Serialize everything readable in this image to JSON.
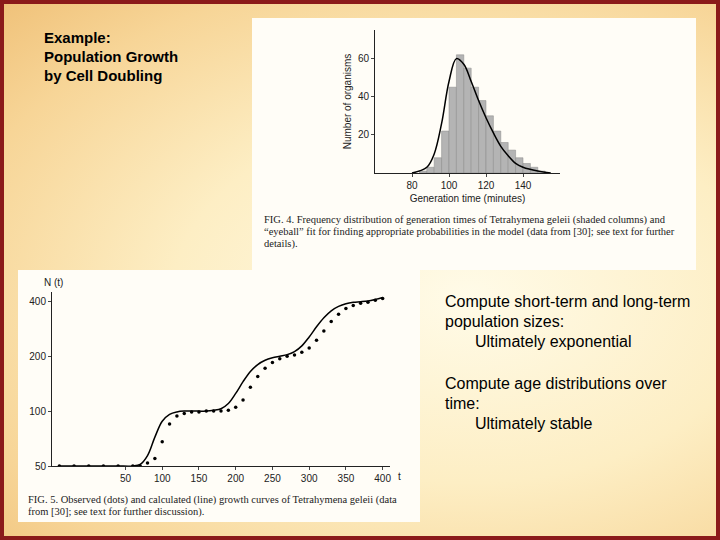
{
  "slide": {
    "title_lines": [
      "Example:",
      "Population Growth",
      "by Cell Doubling"
    ],
    "points": [
      {
        "text": "Compute short-term and long-term population sizes:",
        "detail": "Ultimately exponential"
      },
      {
        "text": "Compute age distributions over time:",
        "detail": "Ultimately stable"
      }
    ]
  },
  "chart_data": [
    {
      "type": "histogram",
      "caption": "FIG. 4. Frequency distribution of generation times of Tetrahymena geleii (shaded columns) and “eyeball” fit for finding appropriate probabilities in the model (data from [30]; see text for further details).",
      "xlabel": "Generation time (minutes)",
      "ylabel": "Number of organisms",
      "bins": [
        84,
        88,
        92,
        96,
        100,
        104,
        108,
        112,
        116,
        120,
        124,
        128,
        132,
        136,
        140,
        144,
        148,
        152
      ],
      "values": [
        1,
        3,
        8,
        22,
        45,
        62,
        55,
        45,
        38,
        30,
        22,
        16,
        12,
        8,
        5,
        3,
        1
      ],
      "color": "#b4b4b4",
      "series": [
        {
          "type": "line",
          "line_style": "solid",
          "color": "#000000",
          "x": [
            80,
            88,
            92,
            96,
            100,
            104,
            108,
            112,
            116,
            120,
            124,
            128,
            132,
            136,
            140,
            148,
            155
          ],
          "values": [
            0,
            3,
            10,
            26,
            48,
            60,
            57,
            48,
            38,
            29,
            21,
            14,
            9,
            5,
            3,
            1,
            0
          ]
        }
      ],
      "xlim": [
        60,
        160
      ],
      "xticks": [
        80,
        100,
        120,
        140
      ],
      "ylim": [
        0,
        75
      ],
      "yticks": [
        20,
        40,
        60
      ],
      "grid": false
    },
    {
      "type": "line",
      "caption": "FIG. 5. Observed (dots) and calculated (line) growth curves of Tetrahymena geleii (data from [30]; see text for further discussion).",
      "xlabel": "t",
      "ylabel": "N (t)",
      "log": "y",
      "xlim": [
        -50,
        410
      ],
      "xticks": [
        50,
        100,
        150,
        200,
        250,
        300,
        350,
        400
      ],
      "ylim": [
        50,
        450
      ],
      "yticks": [
        50,
        100,
        200,
        400
      ],
      "grid": false,
      "series": [
        {
          "type": "scatter",
          "marker": "dot",
          "color": "#000000",
          "x": [
            -40,
            -20,
            0,
            20,
            40,
            60,
            70,
            80,
            90,
            100,
            110,
            120,
            130,
            140,
            150,
            160,
            170,
            180,
            190,
            200,
            210,
            220,
            230,
            240,
            250,
            260,
            270,
            280,
            290,
            300,
            310,
            320,
            330,
            340,
            350,
            360,
            370,
            380,
            390,
            400
          ],
          "values": [
            50,
            50,
            50,
            50,
            50,
            50,
            50,
            52,
            55,
            68,
            85,
            94,
            97,
            99,
            99,
            100,
            100,
            100,
            101,
            105,
            115,
            135,
            155,
            172,
            185,
            194,
            200,
            203,
            210,
            222,
            245,
            275,
            310,
            340,
            365,
            380,
            390,
            395,
            405,
            415
          ]
        },
        {
          "type": "line",
          "line_style": "solid",
          "color": "#000000",
          "x": [
            -40,
            -20,
            0,
            20,
            40,
            60,
            70,
            80,
            90,
            100,
            110,
            120,
            130,
            140,
            150,
            160,
            170,
            180,
            190,
            200,
            210,
            220,
            230,
            240,
            250,
            260,
            270,
            280,
            290,
            300,
            310,
            320,
            330,
            340,
            350,
            360,
            370,
            380,
            390,
            400
          ],
          "values": [
            50,
            50,
            50,
            50,
            50,
            50,
            51,
            57,
            72,
            88,
            96,
            99,
            100,
            100,
            100,
            100,
            101,
            103,
            110,
            125,
            145,
            165,
            180,
            190,
            196,
            200,
            204,
            212,
            228,
            255,
            290,
            325,
            355,
            375,
            388,
            395,
            398,
            402,
            410,
            420
          ]
        }
      ]
    }
  ]
}
